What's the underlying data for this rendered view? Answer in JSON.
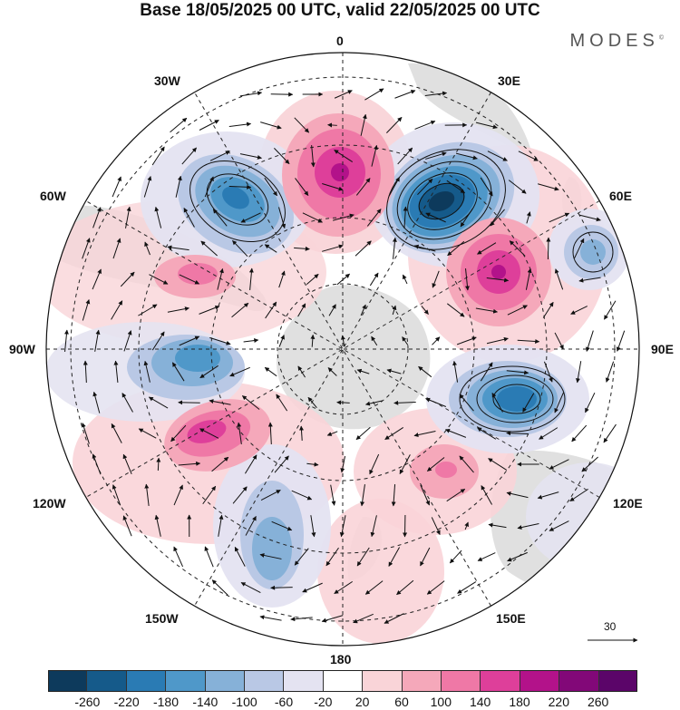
{
  "title": "Base 18/05/2025 00 UTC, valid 22/05/2025 00 UTC",
  "brand": "MODES",
  "brand_mark": "©",
  "longitude_labels": {
    "n0": "0",
    "n30e": "30E",
    "n60e": "60E",
    "n90e": "90E",
    "n120e": "120E",
    "n150e": "150E",
    "n180": "180",
    "n150w": "150W",
    "n120w": "120W",
    "n90w": "90W",
    "n60w": "60W",
    "n30w": "30W"
  },
  "reference_vector_label": "30",
  "colorbar": {
    "colors": [
      "#0d3a5c",
      "#155a8a",
      "#2a7bb4",
      "#4f98c9",
      "#86b1d8",
      "#b9c8e5",
      "#e4e3f1",
      "#ffffff",
      "#f9d4d8",
      "#f5a8ba",
      "#ef78a6",
      "#de3f9a",
      "#b3128a",
      "#820878",
      "#5b0569"
    ],
    "ticks": [
      "-260",
      "-220",
      "-180",
      "-140",
      "-100",
      "-60",
      "-20",
      "20",
      "60",
      "100",
      "140",
      "180",
      "220",
      "260"
    ]
  },
  "anomaly_centers": [
    {
      "sign": "negative",
      "level": -220,
      "lon": "20E",
      "lat": -40
    },
    {
      "sign": "negative",
      "level": -180,
      "lon": "110E",
      "lat": -45
    },
    {
      "sign": "negative",
      "level": -180,
      "lon": "40W",
      "lat": -40
    },
    {
      "sign": "negative",
      "level": -140,
      "lon": "95W",
      "lat": -50
    },
    {
      "sign": "negative",
      "level": -100,
      "lon": "150W",
      "lat": -30
    },
    {
      "sign": "negative",
      "level": -100,
      "lon": "65E",
      "lat": -28
    },
    {
      "sign": "positive",
      "level": 180,
      "lon": "0",
      "lat": -45
    },
    {
      "sign": "positive",
      "level": 180,
      "lon": "65E",
      "lat": -50
    },
    {
      "sign": "positive",
      "level": 140,
      "lon": "115W",
      "lat": -45
    },
    {
      "sign": "positive",
      "level": 100,
      "lon": "75W",
      "lat": -55
    },
    {
      "sign": "positive",
      "level": 60,
      "lon": "140E",
      "lat": -55
    },
    {
      "sign": "positive",
      "level": 60,
      "lon": "170E",
      "lat": -30
    }
  ]
}
